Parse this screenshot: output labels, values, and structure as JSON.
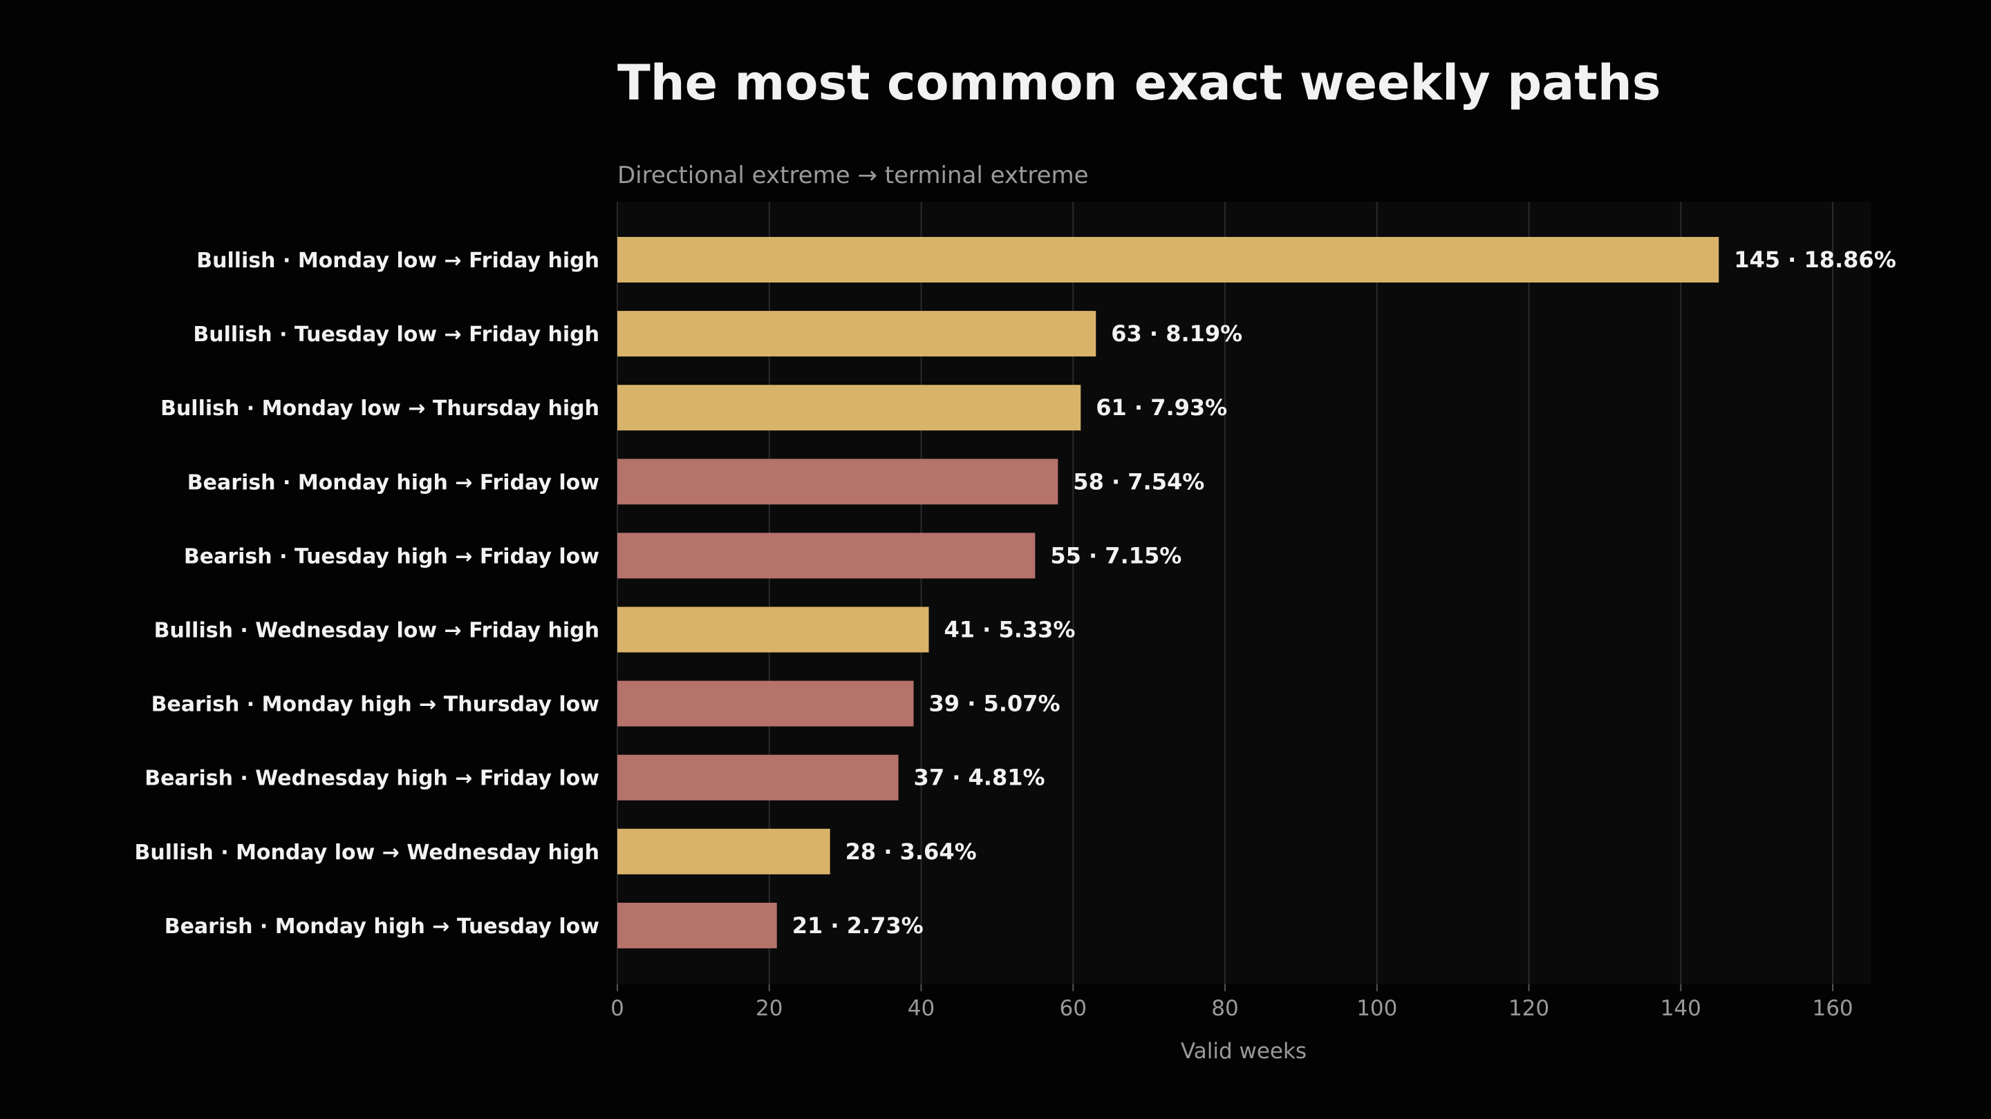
{
  "chart_data": {
    "type": "bar",
    "orientation": "horizontal",
    "title": "The most common exact weekly paths",
    "subtitle": "Directional extreme → terminal extreme",
    "xlabel": "Valid weeks",
    "ylabel": "",
    "xlim": [
      0,
      165
    ],
    "xticks": [
      0,
      20,
      40,
      60,
      80,
      100,
      120,
      140,
      160
    ],
    "grid": "vertical",
    "legend": "none",
    "categories": [
      "Bullish · Monday low → Friday high",
      "Bullish · Tuesday low → Friday high",
      "Bullish · Monday low → Thursday high",
      "Bearish · Monday high → Friday low",
      "Bearish · Tuesday high → Friday low",
      "Bullish · Wednesday low → Friday high",
      "Bearish · Monday high → Thursday low",
      "Bearish · Wednesday high → Friday low",
      "Bullish · Monday low → Wednesday high",
      "Bearish · Monday high → Tuesday low"
    ],
    "direction": [
      "Bullish",
      "Bullish",
      "Bullish",
      "Bearish",
      "Bearish",
      "Bullish",
      "Bearish",
      "Bearish",
      "Bullish",
      "Bearish"
    ],
    "values": [
      145,
      63,
      61,
      58,
      55,
      41,
      39,
      37,
      28,
      21
    ],
    "value_labels": [
      "145 · 18.86%",
      "63 · 8.19%",
      "61 · 7.93%",
      "58 · 7.54%",
      "55 · 7.15%",
      "41 · 5.33%",
      "39 · 5.07%",
      "37 · 4.81%",
      "28 · 3.64%",
      "21 · 2.73%"
    ],
    "colors": {
      "Bullish": "#d8b36a",
      "Bearish": "#b5736c",
      "background": "#030303",
      "plot_background": "#0b0a0a",
      "grid": "#2a2a2a",
      "text": "#f2f2f2",
      "muted_text": "#9a9a9a"
    }
  }
}
